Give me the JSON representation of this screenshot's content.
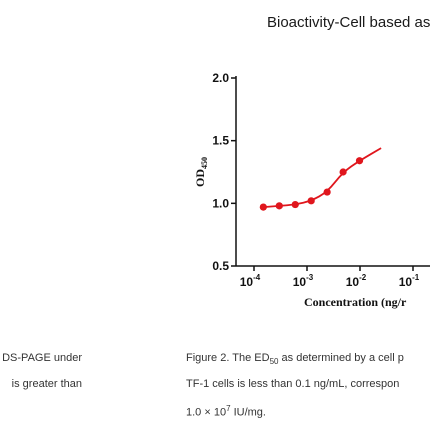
{
  "chart_data": {
    "type": "line",
    "title": "Bioactivity-Cell based as",
    "xlabel": "Concentration (ng/r",
    "ylabel": {
      "base": "OD",
      "sub": "450"
    },
    "x_scale": "log",
    "xlim": [
      0.0001,
      0.05
    ],
    "ylim": [
      0.5,
      2.0
    ],
    "y_ticks": [
      "2.0",
      "1.5",
      "1.0",
      "0.5"
    ],
    "x_ticks": [
      {
        "value": 0.0001,
        "base": "10",
        "exp": "-4"
      },
      {
        "value": 0.001,
        "base": "10",
        "exp": "-3"
      },
      {
        "value": 0.01,
        "base": "10",
        "exp": "-2"
      },
      {
        "value": 0.1,
        "base": "10",
        "exp": "-1"
      }
    ],
    "series": [
      {
        "color": "#e0161d",
        "points": [
          {
            "x": 0.00015,
            "y": 0.97
          },
          {
            "x": 0.0003,
            "y": 0.98
          },
          {
            "x": 0.0006,
            "y": 0.99
          },
          {
            "x": 0.0012,
            "y": 1.02
          },
          {
            "x": 0.0024,
            "y": 1.09
          },
          {
            "x": 0.0048,
            "y": 1.25
          },
          {
            "x": 0.0098,
            "y": 1.34
          }
        ]
      }
    ]
  },
  "left_text": {
    "line1": "DS-PAGE under",
    "line2": "is greater than"
  },
  "caption": {
    "line1_prefix": "Figure 2. The ED",
    "line1_sub": "50",
    "line1_suffix": " as determined by a cell p",
    "line2": "TF-1 cells is less than 0.1 ng/mL, correspon",
    "line3_prefix": "1.0 × 10",
    "line3_sup": "7",
    "line3_suffix": " IU/mg."
  }
}
